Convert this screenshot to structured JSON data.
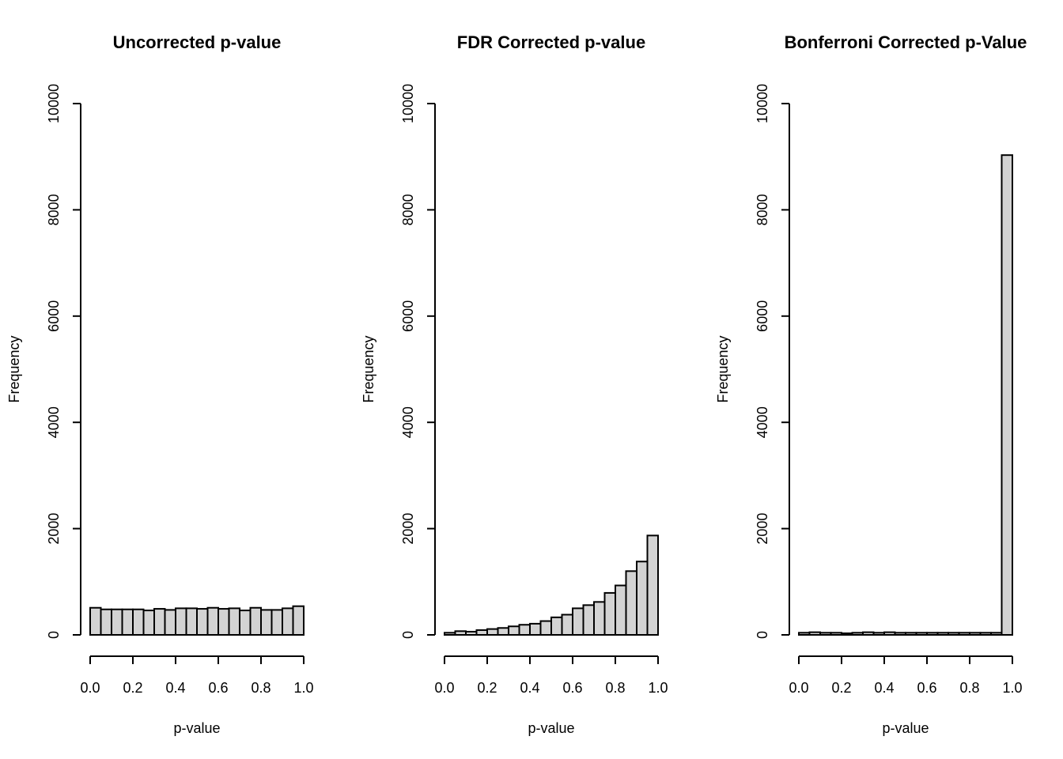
{
  "chart_data": [
    {
      "type": "bar",
      "title": "Uncorrected p-value",
      "xlabel": "p-value",
      "ylabel": "Frequency",
      "xlim": [
        0,
        1
      ],
      "ylim": [
        0,
        10000
      ],
      "x_ticks": [
        "0.0",
        "0.2",
        "0.4",
        "0.6",
        "0.8",
        "1.0"
      ],
      "y_ticks": [
        "0",
        "2000",
        "4000",
        "6000",
        "8000",
        "10000"
      ],
      "bin_width": 0.05,
      "bin_starts": [
        0.0,
        0.05,
        0.1,
        0.15,
        0.2,
        0.25,
        0.3,
        0.35,
        0.4,
        0.45,
        0.5,
        0.55,
        0.6,
        0.65,
        0.7,
        0.75,
        0.8,
        0.85,
        0.9,
        0.95
      ],
      "values": [
        510,
        480,
        480,
        480,
        480,
        460,
        490,
        470,
        500,
        500,
        490,
        510,
        490,
        500,
        460,
        510,
        470,
        470,
        500,
        540
      ],
      "grid": false,
      "bar_color": "#d3d3d3"
    },
    {
      "type": "bar",
      "title": "FDR Corrected p-value",
      "xlabel": "p-value",
      "ylabel": "Frequency",
      "xlim": [
        0,
        1
      ],
      "ylim": [
        0,
        10000
      ],
      "x_ticks": [
        "0.0",
        "0.2",
        "0.4",
        "0.6",
        "0.8",
        "1.0"
      ],
      "y_ticks": [
        "0",
        "2000",
        "4000",
        "6000",
        "8000",
        "10000"
      ],
      "bin_width": 0.05,
      "bin_starts": [
        0.0,
        0.05,
        0.1,
        0.15,
        0.2,
        0.25,
        0.3,
        0.35,
        0.4,
        0.45,
        0.5,
        0.55,
        0.6,
        0.65,
        0.7,
        0.75,
        0.8,
        0.85,
        0.9,
        0.95
      ],
      "values": [
        40,
        70,
        60,
        90,
        110,
        130,
        160,
        190,
        210,
        260,
        330,
        380,
        500,
        560,
        620,
        790,
        930,
        1200,
        1380,
        1870
      ],
      "grid": false,
      "bar_color": "#d3d3d3"
    },
    {
      "type": "bar",
      "title": "Bonferroni Corrected p-Value",
      "xlabel": "p-value",
      "ylabel": "Frequency",
      "xlim": [
        0,
        1
      ],
      "ylim": [
        0,
        10000
      ],
      "x_ticks": [
        "0.0",
        "0.2",
        "0.4",
        "0.6",
        "0.8",
        "1.0"
      ],
      "y_ticks": [
        "0",
        "2000",
        "4000",
        "6000",
        "8000",
        "10000"
      ],
      "bin_width": 0.05,
      "bin_starts": [
        0.0,
        0.05,
        0.1,
        0.15,
        0.2,
        0.25,
        0.3,
        0.35,
        0.4,
        0.45,
        0.5,
        0.55,
        0.6,
        0.65,
        0.7,
        0.75,
        0.8,
        0.85,
        0.9,
        0.95
      ],
      "values": [
        40,
        50,
        40,
        40,
        30,
        40,
        50,
        40,
        50,
        40,
        40,
        40,
        40,
        40,
        40,
        40,
        40,
        40,
        40,
        9030
      ],
      "grid": false,
      "bar_color": "#d3d3d3"
    }
  ]
}
